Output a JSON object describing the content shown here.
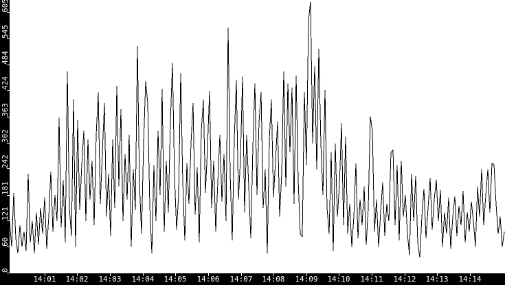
{
  "chart_data": {
    "type": "line",
    "title": "",
    "xlabel": "",
    "ylabel": "",
    "legend": null,
    "grid": false,
    "line_color": "#000000",
    "plot_background": "#ffffff",
    "axis_background": "#000000",
    "axis_text_color": "#ffffff",
    "ylim": [
      0,
      605
    ],
    "y_tick_values": [
      0,
      60,
      121,
      181,
      242,
      302,
      363,
      424,
      484,
      545,
      605
    ],
    "x_tick_labels": [
      "14:01",
      "14:02",
      "14:03",
      "14:04",
      "14:05",
      "14:06",
      "14:07",
      "14:08",
      "14:09",
      "14:10",
      "14:11",
      "14:12",
      "14:13",
      "14:14"
    ],
    "x_tick_minutes": [
      1,
      2,
      3,
      4,
      5,
      6,
      7,
      8,
      9,
      10,
      11,
      12,
      13,
      14
    ],
    "time_start": "13:59:56",
    "time_end": "14:15:03",
    "t_start_s": -4,
    "t_end_s": 903,
    "values": [
      120,
      60,
      185,
      80,
      45,
      110,
      60,
      95,
      50,
      230,
      70,
      120,
      45,
      140,
      65,
      150,
      90,
      175,
      55,
      130,
      235,
      95,
      180,
      120,
      360,
      105,
      215,
      70,
      468,
      150,
      85,
      403,
      60,
      355,
      145,
      250,
      330,
      120,
      310,
      170,
      260,
      110,
      320,
      419,
      160,
      280,
      394,
      130,
      230,
      85,
      310,
      150,
      434,
      200,
      380,
      120,
      275,
      170,
      320,
      60,
      240,
      145,
      527,
      210,
      90,
      300,
      445,
      395,
      155,
      45,
      250,
      120,
      330,
      180,
      427,
      95,
      260,
      140,
      350,
      487,
      225,
      100,
      180,
      464,
      210,
      75,
      255,
      160,
      300,
      394,
      135,
      245,
      70,
      330,
      402,
      185,
      290,
      422,
      150,
      260,
      95,
      210,
      320,
      165,
      275,
      120,
      569,
      230,
      75,
      310,
      448,
      170,
      265,
      456,
      140,
      320,
      200,
      80,
      290,
      440,
      180,
      350,
      420,
      150,
      240,
      45,
      310,
      402,
      175,
      260,
      350,
      130,
      230,
      468,
      200,
      440,
      280,
      430,
      160,
      458,
      215,
      90,
      84,
      420,
      250,
      585,
      630,
      300,
      480,
      240,
      520,
      300,
      180,
      425,
      150,
      90,
      280,
      50,
      300,
      130,
      200,
      347,
      110,
      316,
      90,
      160,
      60,
      130,
      254,
      80,
      170,
      110,
      200,
      65,
      150,
      363,
      329,
      95,
      170,
      60,
      140,
      210,
      85,
      160,
      120,
      279,
      285,
      110,
      250,
      75,
      260,
      130,
      180,
      90,
      40,
      230,
      120,
      225,
      70,
      35,
      130,
      195,
      80,
      150,
      220,
      100,
      170,
      216,
      120,
      192,
      60,
      140,
      90,
      175,
      55,
      130,
      177,
      85,
      155,
      110,
      190,
      70,
      140,
      95,
      165,
      120,
      60,
      200,
      130,
      240,
      110,
      180,
      240,
      140,
      254,
      251,
      160,
      90,
      130,
      60,
      95
    ]
  }
}
